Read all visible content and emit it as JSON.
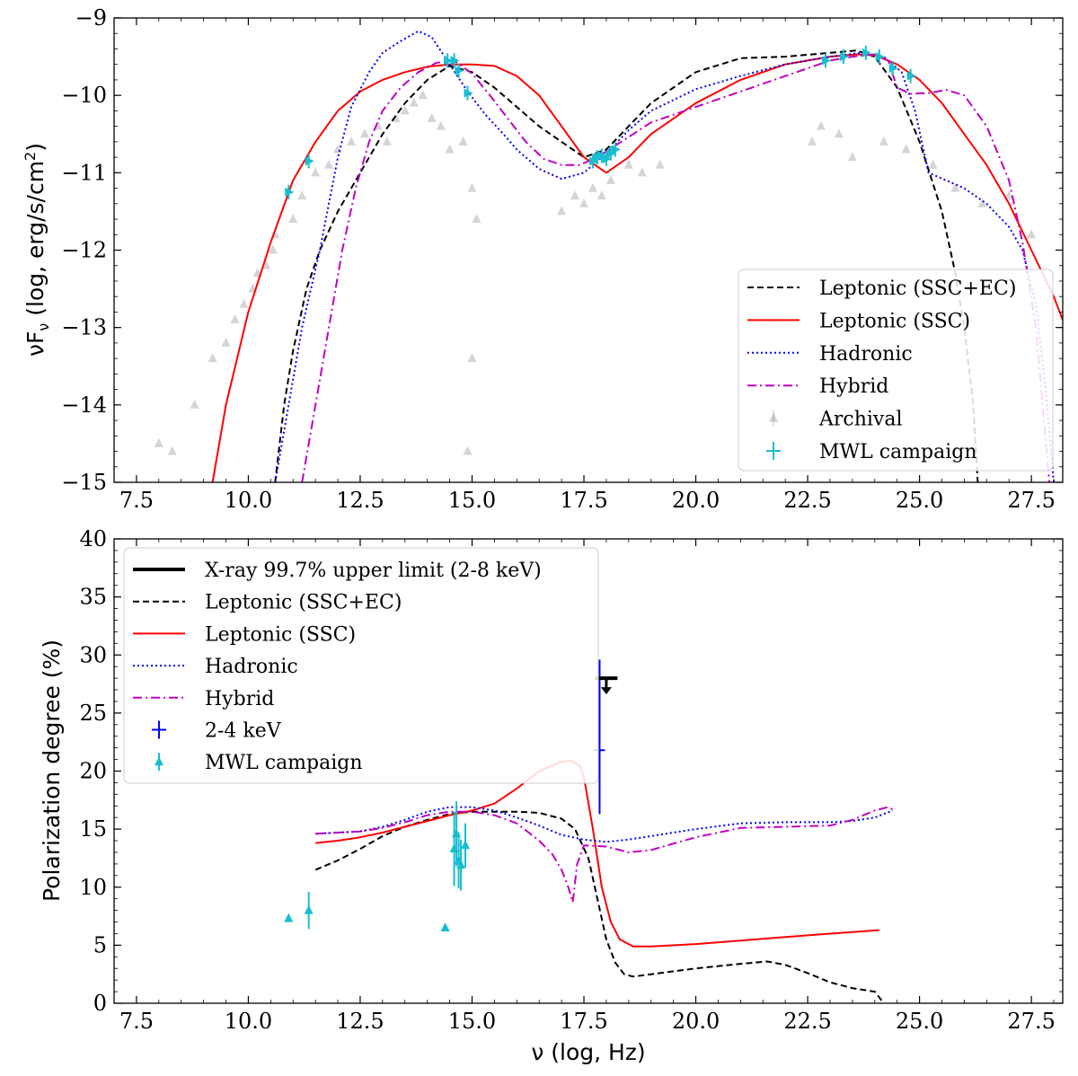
{
  "chart_data": [
    {
      "type": "line",
      "panel": "top",
      "xlabel": "",
      "ylabel": "νF_ν (log, erg/s/cm²)",
      "ylabel_main": "νF",
      "ylabel_sub": "ν",
      "ylabel_rest": " (log, erg/s/cm",
      "ylabel_sup": "2",
      "ylabel_end": ")",
      "xlim": [
        7.0,
        28.2
      ],
      "ylim": [
        -15,
        -9
      ],
      "xticks": [
        7.5,
        10.0,
        12.5,
        15.0,
        17.5,
        20.0,
        22.5,
        25.0,
        27.5
      ],
      "xtick_labels": [
        "7.5",
        "10.0",
        "12.5",
        "15.0",
        "17.5",
        "20.0",
        "22.5",
        "25.0",
        "27.5"
      ],
      "yticks": [
        -15,
        -14,
        -13,
        -12,
        -11,
        -10,
        -9
      ],
      "ytick_labels": [
        "−15",
        "−14",
        "−13",
        "−12",
        "−11",
        "−10",
        "−9"
      ],
      "legend_position": "bottom-right",
      "legend": [
        {
          "label": "Leptonic (SSC+EC)",
          "color": "#000000",
          "style": "dashed"
        },
        {
          "label": "Leptonic (SSC)",
          "color": "#ff0000",
          "style": "solid"
        },
        {
          "label": "Hadronic",
          "color": "#0000ff",
          "style": "dotted"
        },
        {
          "label": "Hybrid",
          "color": "#bf00bf",
          "style": "dashdot"
        },
        {
          "label": "Archival",
          "color": "#9a9a9a",
          "style": "triangle"
        },
        {
          "label": "MWL campaign",
          "color": "#17becf",
          "style": "errorbar"
        }
      ],
      "series": [
        {
          "name": "Leptonic (SSC+EC)",
          "color": "#000000",
          "style": "dashed",
          "x": [
            10.6,
            10.8,
            11.0,
            11.3,
            11.6,
            12.0,
            12.5,
            13.0,
            13.5,
            14.0,
            14.5,
            15.0,
            15.5,
            16.0,
            16.5,
            17.0,
            17.5,
            18.0,
            18.5,
            19.0,
            20.0,
            21.0,
            22.0,
            23.0,
            23.6,
            24.0,
            24.5,
            25.0,
            25.5,
            25.8,
            26.0,
            26.2,
            26.3
          ],
          "y": [
            -15.0,
            -14.0,
            -13.3,
            -12.5,
            -12.0,
            -11.5,
            -11.0,
            -10.5,
            -10.1,
            -9.8,
            -9.62,
            -9.7,
            -9.9,
            -10.15,
            -10.4,
            -10.6,
            -10.8,
            -10.7,
            -10.4,
            -10.1,
            -9.7,
            -9.52,
            -9.5,
            -9.45,
            -9.42,
            -9.5,
            -9.9,
            -10.6,
            -11.5,
            -12.3,
            -13.0,
            -14.0,
            -15.0
          ]
        },
        {
          "name": "Leptonic (SSC)",
          "color": "#ff0000",
          "style": "solid",
          "x": [
            9.2,
            9.5,
            10.0,
            10.5,
            11.0,
            11.5,
            12.0,
            12.5,
            13.0,
            13.5,
            14.0,
            14.5,
            15.0,
            15.5,
            16.0,
            16.5,
            17.0,
            17.5,
            18.0,
            18.5,
            19.0,
            20.0,
            21.0,
            22.0,
            23.0,
            23.6,
            24.0,
            24.5,
            25.0,
            25.5,
            26.0,
            26.5,
            27.0,
            27.5,
            28.0,
            28.2
          ],
          "y": [
            -15.0,
            -14.0,
            -12.8,
            -11.9,
            -11.1,
            -10.6,
            -10.2,
            -9.95,
            -9.8,
            -9.7,
            -9.63,
            -9.6,
            -9.6,
            -9.62,
            -9.75,
            -10.0,
            -10.4,
            -10.8,
            -11.0,
            -10.8,
            -10.5,
            -10.1,
            -9.8,
            -9.6,
            -9.5,
            -9.47,
            -9.48,
            -9.6,
            -9.8,
            -10.1,
            -10.5,
            -10.9,
            -11.4,
            -12.0,
            -12.6,
            -12.9
          ]
        },
        {
          "name": "Hadronic",
          "color": "#0000ff",
          "style": "dotted",
          "x": [
            10.6,
            10.9,
            11.2,
            11.6,
            12.0,
            12.3,
            12.7,
            13.0,
            13.4,
            13.8,
            14.1,
            14.5,
            14.9,
            15.3,
            15.7,
            16.0,
            16.5,
            17.0,
            17.5,
            18.0,
            18.5,
            19.0,
            20.0,
            21.0,
            22.0,
            23.0,
            23.7,
            24.2,
            24.6,
            24.9,
            25.2,
            25.6,
            26.0,
            26.5,
            27.0,
            27.3,
            27.6,
            27.8,
            28.0
          ],
          "y": [
            -15.0,
            -14.0,
            -13.0,
            -12.0,
            -10.8,
            -10.15,
            -9.7,
            -9.45,
            -9.3,
            -9.17,
            -9.25,
            -9.6,
            -9.95,
            -10.25,
            -10.5,
            -10.7,
            -10.95,
            -11.08,
            -11.0,
            -10.75,
            -10.45,
            -10.2,
            -9.92,
            -9.75,
            -9.6,
            -9.5,
            -9.45,
            -9.5,
            -9.7,
            -10.2,
            -11.0,
            -11.1,
            -11.2,
            -11.4,
            -11.7,
            -12.0,
            -12.7,
            -13.7,
            -15.0
          ]
        },
        {
          "name": "Hybrid",
          "color": "#bf00bf",
          "style": "dashdot",
          "x": [
            11.2,
            11.5,
            11.8,
            12.1,
            12.4,
            12.7,
            13.0,
            13.4,
            13.8,
            14.2,
            14.6,
            15.0,
            15.4,
            15.8,
            16.2,
            16.6,
            17.0,
            17.4,
            17.8,
            18.2,
            18.6,
            19.0,
            20.0,
            21.0,
            22.0,
            23.0,
            23.5,
            24.0,
            24.3,
            24.5,
            24.8,
            25.2,
            25.6,
            26.0,
            26.5,
            27.0,
            27.3,
            27.6,
            27.9
          ],
          "y": [
            -15.0,
            -14.0,
            -13.0,
            -12.0,
            -11.2,
            -10.6,
            -10.2,
            -9.9,
            -9.7,
            -9.58,
            -9.55,
            -9.72,
            -10.0,
            -10.3,
            -10.6,
            -10.82,
            -10.9,
            -10.9,
            -10.8,
            -10.65,
            -10.5,
            -10.35,
            -10.15,
            -9.95,
            -9.75,
            -9.55,
            -9.5,
            -9.47,
            -9.55,
            -9.9,
            -9.98,
            -9.97,
            -9.93,
            -10.0,
            -10.4,
            -11.1,
            -11.9,
            -13.0,
            -15.0
          ]
        }
      ],
      "mwl_points": {
        "name": "MWL campaign",
        "color": "#17becf",
        "x": [
          10.9,
          11.35,
          14.45,
          14.6,
          14.7,
          14.9,
          17.7,
          17.8,
          17.9,
          18.0,
          18.1,
          18.2,
          22.9,
          23.3,
          23.8,
          24.1,
          24.4,
          24.8
        ],
        "y": [
          -11.25,
          -10.85,
          -9.55,
          -9.55,
          -9.68,
          -9.97,
          -10.85,
          -10.8,
          -10.78,
          -10.82,
          -10.75,
          -10.7,
          -9.55,
          -9.5,
          -9.45,
          -9.5,
          -9.65,
          -9.75
        ]
      },
      "archival_points": {
        "name": "Archival",
        "color": "#9a9a9a",
        "x": [
          8.0,
          8.3,
          8.8,
          9.2,
          9.5,
          9.7,
          9.9,
          10.1,
          10.2,
          10.4,
          10.55,
          10.6,
          11.0,
          11.2,
          11.5,
          11.8,
          12.0,
          12.3,
          12.6,
          12.9,
          13.1,
          13.3,
          13.5,
          13.7,
          13.9,
          14.1,
          14.3,
          14.5,
          14.8,
          15.0,
          15.1,
          15.0,
          14.9,
          17.0,
          17.3,
          17.5,
          17.7,
          17.9,
          18.1,
          18.5,
          18.8,
          19.2,
          22.6,
          22.8,
          23.2,
          23.5,
          24.2,
          24.7,
          25.3,
          25.8,
          26.4,
          27.0,
          27.5
        ],
        "y": [
          -14.5,
          -14.6,
          -14.0,
          -13.4,
          -13.2,
          -12.9,
          -12.7,
          -12.5,
          -12.3,
          -12.2,
          -12.0,
          -11.8,
          -11.6,
          -11.3,
          -11.0,
          -10.9,
          -10.7,
          -10.6,
          -10.5,
          -10.4,
          -10.6,
          -10.3,
          -10.2,
          -10.1,
          -10.0,
          -10.3,
          -10.4,
          -10.7,
          -10.6,
          -11.2,
          -11.6,
          -13.4,
          -14.6,
          -11.5,
          -11.3,
          -11.4,
          -11.2,
          -11.3,
          -11.1,
          -10.9,
          -11.0,
          -10.9,
          -10.6,
          -10.4,
          -10.5,
          -10.8,
          -10.6,
          -10.7,
          -10.9,
          -11.2,
          -11.4,
          -11.3,
          -11.8
        ]
      }
    },
    {
      "type": "line",
      "panel": "bottom",
      "xlabel": "ν (log, Hz)",
      "ylabel": "Polarization degree (%)",
      "xlim": [
        7.0,
        28.2
      ],
      "ylim": [
        0,
        40
      ],
      "xticks": [
        7.5,
        10.0,
        12.5,
        15.0,
        17.5,
        20.0,
        22.5,
        25.0,
        27.5
      ],
      "xtick_labels": [
        "7.5",
        "10.0",
        "12.5",
        "15.0",
        "17.5",
        "20.0",
        "22.5",
        "25.0",
        "27.5"
      ],
      "yticks": [
        0,
        5,
        10,
        15,
        20,
        25,
        30,
        35,
        40
      ],
      "ytick_labels": [
        "0",
        "5",
        "10",
        "15",
        "20",
        "25",
        "30",
        "35",
        "40"
      ],
      "legend_position": "top-left",
      "legend": [
        {
          "label": "X-ray 99.7% upper limit (2-8 keV)",
          "color": "#000000",
          "style": "thick"
        },
        {
          "label": "Leptonic (SSC+EC)",
          "color": "#000000",
          "style": "dashed"
        },
        {
          "label": "Leptonic (SSC)",
          "color": "#ff0000",
          "style": "solid"
        },
        {
          "label": "Hadronic",
          "color": "#0000ff",
          "style": "dotted"
        },
        {
          "label": "Hybrid",
          "color": "#bf00bf",
          "style": "dashdot"
        },
        {
          "label": "2-4 keV",
          "color": "#0000ff",
          "style": "errorbar"
        },
        {
          "label": "MWL campaign",
          "color": "#17becf",
          "style": "triangle-errorbar"
        }
      ],
      "series": [
        {
          "name": "Leptonic (SSC+EC)",
          "color": "#000000",
          "style": "dashed",
          "x": [
            11.5,
            12.0,
            12.5,
            13.0,
            13.5,
            14.0,
            14.5,
            15.0,
            15.5,
            16.0,
            16.5,
            17.0,
            17.3,
            17.6,
            17.8,
            18.0,
            18.2,
            18.4,
            18.6,
            19.0,
            20.0,
            21.0,
            21.6,
            22.0,
            22.5,
            23.0,
            23.5,
            24.0,
            24.1,
            24.2
          ],
          "y": [
            11.5,
            12.3,
            13.3,
            14.4,
            15.2,
            15.8,
            16.3,
            16.5,
            16.5,
            16.5,
            16.4,
            15.9,
            15.0,
            12.5,
            9.0,
            5.5,
            3.5,
            2.5,
            2.3,
            2.5,
            3.0,
            3.4,
            3.6,
            3.3,
            2.6,
            1.8,
            1.3,
            1.0,
            0.5,
            0.0
          ]
        },
        {
          "name": "Leptonic (SSC)",
          "color": "#ff0000",
          "style": "solid",
          "x": [
            11.5,
            12.0,
            12.5,
            13.0,
            13.5,
            14.0,
            14.5,
            15.0,
            15.5,
            16.0,
            16.5,
            17.0,
            17.2,
            17.4,
            17.5,
            17.7,
            17.9,
            18.1,
            18.3,
            18.6,
            19.0,
            20.0,
            21.0,
            22.0,
            23.0,
            24.1
          ],
          "y": [
            13.8,
            14.0,
            14.3,
            14.7,
            15.2,
            15.7,
            16.2,
            16.6,
            17.2,
            18.5,
            20.0,
            20.8,
            20.9,
            20.5,
            19.5,
            15.0,
            10.0,
            7.0,
            5.5,
            4.9,
            4.9,
            5.1,
            5.4,
            5.7,
            6.0,
            6.3
          ]
        },
        {
          "name": "Hadronic",
          "color": "#0000ff",
          "style": "dotted",
          "x": [
            11.5,
            12.0,
            12.5,
            13.0,
            13.5,
            14.0,
            14.5,
            15.0,
            15.5,
            16.0,
            16.5,
            17.0,
            17.5,
            18.0,
            18.5,
            19.0,
            20.0,
            21.0,
            22.0,
            23.0,
            23.5,
            24.0,
            24.4
          ],
          "y": [
            14.6,
            14.7,
            14.8,
            15.2,
            15.8,
            16.5,
            16.9,
            16.9,
            16.6,
            16.0,
            15.3,
            14.5,
            14.1,
            13.9,
            14.1,
            14.4,
            15.0,
            15.5,
            15.6,
            15.6,
            15.7,
            16.0,
            16.6
          ]
        },
        {
          "name": "Hybrid",
          "color": "#bf00bf",
          "style": "dashdot",
          "x": [
            11.5,
            12.0,
            12.5,
            13.0,
            13.5,
            14.0,
            14.5,
            15.0,
            15.5,
            16.0,
            16.5,
            16.8,
            17.0,
            17.15,
            17.25,
            17.35,
            17.5,
            18.0,
            18.5,
            19.0,
            20.0,
            21.0,
            22.0,
            23.0,
            23.5,
            24.0,
            24.3,
            24.4
          ],
          "y": [
            14.6,
            14.7,
            14.8,
            15.1,
            15.6,
            16.2,
            16.5,
            16.5,
            16.2,
            15.5,
            14.0,
            12.8,
            11.5,
            10.0,
            8.7,
            12.0,
            13.6,
            13.5,
            13.0,
            13.2,
            14.3,
            15.1,
            15.2,
            15.3,
            15.8,
            16.6,
            16.9,
            16.7
          ]
        }
      ],
      "xray_upper_limit": {
        "label": "X-ray 99.7% upper limit (2-8 keV)",
        "x_range": [
          17.75,
          18.25
        ],
        "x_arrow": 18.0,
        "y": 28.0,
        "color": "#000000"
      },
      "kev_point": {
        "label": "2-4 keV",
        "x": 17.85,
        "y": 21.8,
        "yerr_low": 16.3,
        "yerr_high": 29.6,
        "color": "#0000ff"
      },
      "mwl_points": {
        "name": "MWL campaign",
        "color": "#17becf",
        "x": [
          10.9,
          11.35,
          14.4,
          14.6,
          14.65,
          14.7,
          14.75,
          14.85
        ],
        "y": [
          7.3,
          8.0,
          6.5,
          13.3,
          14.6,
          12.3,
          11.9,
          13.6
        ],
        "yerr": [
          0.3,
          1.6,
          0.2,
          3.2,
          2.8,
          2.4,
          2.2,
          1.9
        ]
      }
    }
  ]
}
